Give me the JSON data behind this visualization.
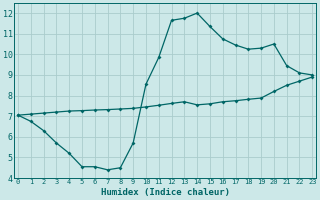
{
  "xlabel": "Humidex (Indice chaleur)",
  "bg_color": "#cce8e8",
  "grid_color": "#aacccc",
  "line_color": "#006666",
  "xlim": [
    0,
    23
  ],
  "ylim": [
    4,
    12.5
  ],
  "yticks": [
    4,
    5,
    6,
    7,
    8,
    9,
    10,
    11,
    12
  ],
  "xticks": [
    0,
    1,
    2,
    3,
    4,
    5,
    6,
    7,
    8,
    9,
    10,
    11,
    12,
    13,
    14,
    15,
    16,
    17,
    18,
    19,
    20,
    21,
    22,
    23
  ],
  "line1_x": [
    0,
    1,
    2,
    3,
    4,
    5,
    6,
    7,
    8,
    9,
    10,
    11,
    12,
    13,
    14,
    15,
    16,
    17,
    18,
    19,
    20,
    21,
    22,
    23
  ],
  "line1_y": [
    7.05,
    6.75,
    6.3,
    5.7,
    5.2,
    4.55,
    4.55,
    4.4,
    4.5,
    5.7,
    8.55,
    9.85,
    11.65,
    11.75,
    12.0,
    11.35,
    10.75,
    10.45,
    10.25,
    10.3,
    10.5,
    9.45,
    9.1,
    9.0
  ],
  "line2_x": [
    0,
    1,
    2,
    3,
    4,
    5,
    6,
    7,
    8,
    9,
    10,
    11,
    12,
    13,
    14,
    15,
    16,
    17,
    18,
    19,
    20,
    21,
    22,
    23
  ],
  "line2_y": [
    7.05,
    7.1,
    7.15,
    7.2,
    7.25,
    7.27,
    7.3,
    7.32,
    7.35,
    7.38,
    7.45,
    7.53,
    7.62,
    7.7,
    7.55,
    7.6,
    7.7,
    7.75,
    7.82,
    7.88,
    8.2,
    8.5,
    8.7,
    8.9
  ]
}
